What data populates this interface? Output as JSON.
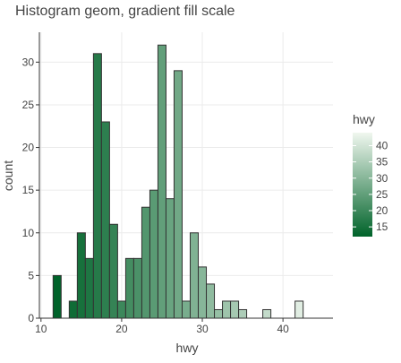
{
  "chart_data": {
    "type": "bar",
    "title": "Histogram geom, gradient fill scale",
    "xlabel": "hwy",
    "ylabel": "count",
    "xlim": [
      9.8,
      46.2
    ],
    "ylim": [
      0,
      33.5
    ],
    "x_ticks": [
      10,
      20,
      30,
      40
    ],
    "y_ticks": [
      0,
      5,
      10,
      15,
      20,
      25,
      30
    ],
    "grid": true,
    "bin_width": 1,
    "bins": [
      {
        "x": 12,
        "count": 5
      },
      {
        "x": 13,
        "count": 0
      },
      {
        "x": 14,
        "count": 2
      },
      {
        "x": 15,
        "count": 10
      },
      {
        "x": 16,
        "count": 7
      },
      {
        "x": 17,
        "count": 31
      },
      {
        "x": 18,
        "count": 23
      },
      {
        "x": 19,
        "count": 11
      },
      {
        "x": 20,
        "count": 2
      },
      {
        "x": 21,
        "count": 7
      },
      {
        "x": 22,
        "count": 7
      },
      {
        "x": 23,
        "count": 13
      },
      {
        "x": 24,
        "count": 15
      },
      {
        "x": 25,
        "count": 32
      },
      {
        "x": 26,
        "count": 14
      },
      {
        "x": 27,
        "count": 29
      },
      {
        "x": 28,
        "count": 2
      },
      {
        "x": 29,
        "count": 10
      },
      {
        "x": 30,
        "count": 6
      },
      {
        "x": 31,
        "count": 4
      },
      {
        "x": 32,
        "count": 1
      },
      {
        "x": 33,
        "count": 2
      },
      {
        "x": 34,
        "count": 2
      },
      {
        "x": 35,
        "count": 1
      },
      {
        "x": 36,
        "count": 0
      },
      {
        "x": 37,
        "count": 0
      },
      {
        "x": 38,
        "count": 1
      },
      {
        "x": 39,
        "count": 0
      },
      {
        "x": 40,
        "count": 0
      },
      {
        "x": 41,
        "count": 0
      },
      {
        "x": 42,
        "count": 2
      }
    ],
    "legend": {
      "title": "hwy",
      "placement": "right",
      "ticks": [
        15,
        20,
        25,
        30,
        35,
        40
      ],
      "range": [
        12,
        44
      ],
      "low_color": "#00632A",
      "high_color": "#F0F7EF"
    },
    "colors": {
      "bar_outline": "#333333",
      "grid": "#EBEBEB",
      "axis": "#333333"
    }
  }
}
